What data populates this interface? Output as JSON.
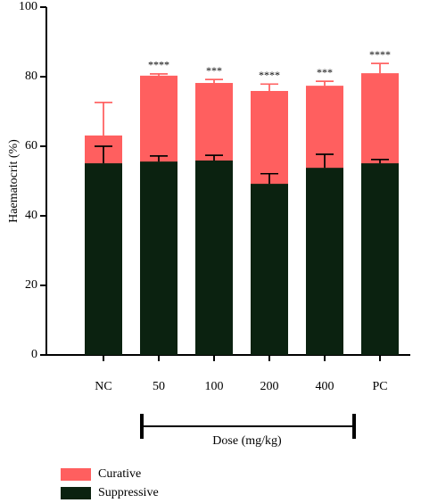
{
  "chart_data": {
    "type": "bar",
    "ylabel": "Haematocrit (%)",
    "xlabel": "Dose (mg/kg)",
    "categories": [
      "NC",
      "50",
      "100",
      "200",
      "400",
      "PC"
    ],
    "series": [
      {
        "name": "Curative",
        "color": "#ff5f5f",
        "values": [
          63.1,
          80.3,
          78.2,
          75.9,
          77.4,
          81.0
        ],
        "errors": [
          9.5,
          0.5,
          1.0,
          2.0,
          1.3,
          2.8
        ]
      },
      {
        "name": "Suppressive",
        "color": "#0b2210",
        "values": [
          55.1,
          55.6,
          55.9,
          49.2,
          53.8,
          55.1
        ],
        "errors": [
          4.9,
          1.6,
          1.5,
          2.9,
          3.9,
          1.1
        ]
      }
    ],
    "annotations": [
      null,
      "****",
      "***",
      "****",
      "***",
      "****"
    ],
    "ylim": [
      0,
      100
    ],
    "yticks": [
      0,
      20,
      40,
      60,
      80,
      100
    ]
  }
}
